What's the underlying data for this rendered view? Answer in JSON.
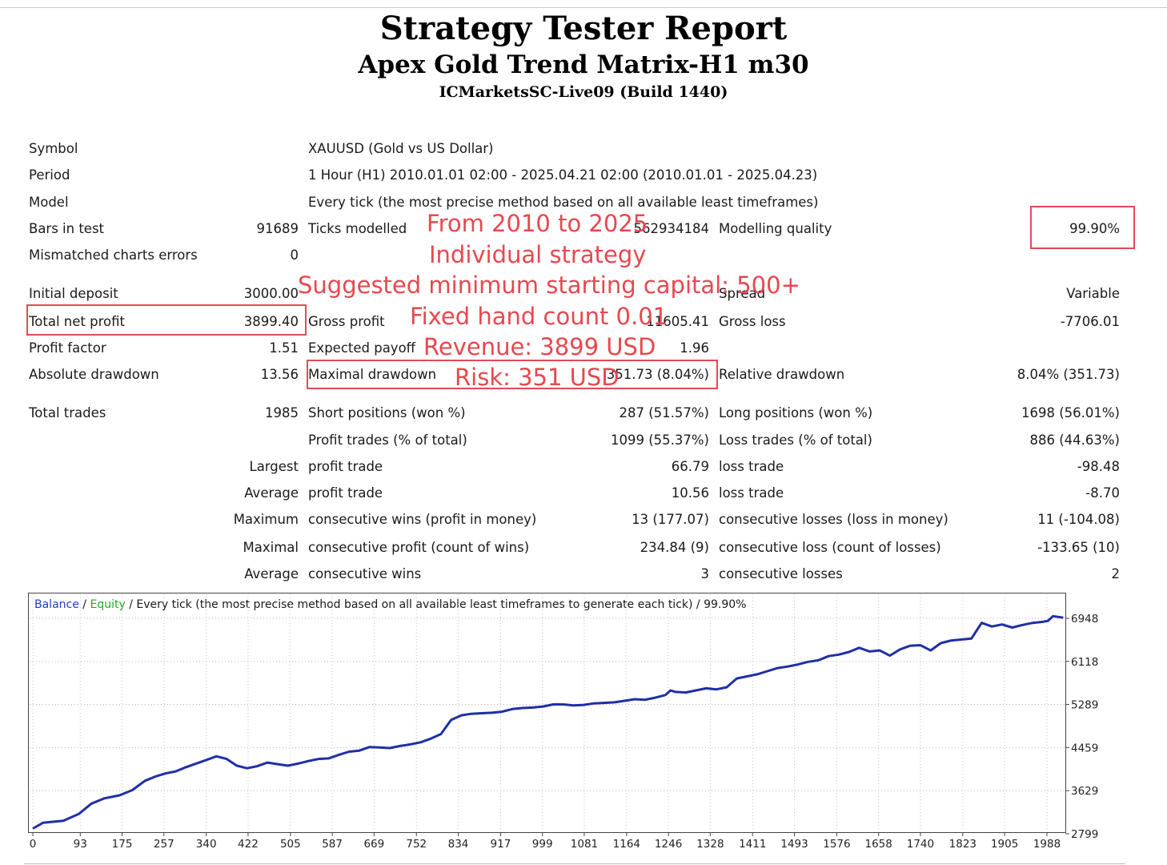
{
  "header": {
    "title": "Strategy Tester Report",
    "ea_name": "Apex Gold Trend Matrix-H1 m30",
    "server": "ICMarketsSC-Live09 (Build 1440)"
  },
  "report": {
    "symbol_label": "Symbol",
    "symbol_value": "XAUUSD (Gold vs US Dollar)",
    "period_label": "Period",
    "period_value": "1 Hour (H1) 2010.01.01 02:00 - 2025.04.21 02:00 (2010.01.01 - 2025.04.23)",
    "model_label": "Model",
    "model_value": "Every tick (the most precise method based on all available least timeframes)",
    "bars_label": "Bars in test",
    "bars_value": "91689",
    "ticks_label": "Ticks modelled",
    "ticks_value": "562934184",
    "quality_label": "Modelling quality",
    "quality_value": "99.90%",
    "mismatch_label": "Mismatched charts errors",
    "mismatch_value": "0",
    "deposit_label": "Initial deposit",
    "deposit_value": "3000.00",
    "spread_label": "Spread",
    "spread_value": "Variable",
    "net_profit_label": "Total net profit",
    "net_profit_value": "3899.40",
    "gross_profit_label": "Gross profit",
    "gross_profit_value": "11605.41",
    "gross_loss_label": "Gross loss",
    "gross_loss_value": "-7706.01",
    "pf_label": "Profit factor",
    "pf_value": "1.51",
    "payoff_label": "Expected payoff",
    "payoff_value": "1.96",
    "abs_dd_label": "Absolute drawdown",
    "abs_dd_value": "13.56",
    "max_dd_label": "Maximal drawdown",
    "max_dd_value": "351.73 (8.04%)",
    "rel_dd_label": "Relative drawdown",
    "rel_dd_value": "8.04% (351.73)",
    "total_trades_label": "Total trades",
    "total_trades_value": "1985",
    "short_label": "Short positions (won %)",
    "short_value": "287 (51.57%)",
    "long_label": "Long positions (won %)",
    "long_value": "1698 (56.01%)",
    "profit_trades_label": "Profit trades (% of total)",
    "profit_trades_value": "1099 (55.37%)",
    "loss_trades_label": "Loss trades (% of total)",
    "loss_trades_value": "886 (44.63%)",
    "largest_label": "Largest",
    "largest_profit_label": "profit trade",
    "largest_profit_value": "66.79",
    "largest_loss_label": "loss trade",
    "largest_loss_value": "-98.48",
    "average_label": "Average",
    "average_profit_label": "profit trade",
    "average_profit_value": "10.56",
    "average_loss_label": "loss trade",
    "average_loss_value": "-8.70",
    "maximum_label": "Maximum",
    "max_wins_label": "consecutive wins (profit in money)",
    "max_wins_value": "13 (177.07)",
    "max_losses_label": "consecutive losses (loss in money)",
    "max_losses_value": "11 (-104.08)",
    "maximal_label": "Maximal",
    "maximal_profit_label": "consecutive profit (count of wins)",
    "maximal_profit_value": "234.84 (9)",
    "maximal_loss_label": "consecutive loss (count of losses)",
    "maximal_loss_value": "-133.65 (10)",
    "average2_label": "Average",
    "avg_wins_label": "consecutive wins",
    "avg_wins_value": "3",
    "avg_losses_label": "consecutive losses",
    "avg_losses_value": "2"
  },
  "overlay": {
    "line1": "From 2010 to 2025",
    "line2": "Individual strategy",
    "line3": "Suggested minimum starting capital: 500+",
    "line4": "Fixed hand count 0.01",
    "line5": "Revenue: 3899 USD",
    "line6": "Risk: 351 USD"
  },
  "colors": {
    "balance_line": "#1f2fa6",
    "balance_legend": "#1f3fbf",
    "equity_legend": "#2aa52a",
    "highlight_box": "#e04b55",
    "overlay_text": "#e8474f"
  },
  "chart_data": {
    "type": "line",
    "legend": {
      "balance": "Balance",
      "sep1": " / ",
      "equity": "Equity",
      "rest": " / Every tick (the most precise method based on all available least timeframes to generate each tick) / 99.90%"
    },
    "x_ticks": [
      "0",
      "93",
      "175",
      "257",
      "340",
      "422",
      "505",
      "587",
      "669",
      "752",
      "834",
      "917",
      "999",
      "1081",
      "1164",
      "1246",
      "1328",
      "1411",
      "1493",
      "1576",
      "1658",
      "1740",
      "1823",
      "1905",
      "1988"
    ],
    "y_ticks": [
      "6948",
      "6118",
      "5289",
      "4459",
      "3629",
      "2799"
    ],
    "xlim": [
      0,
      2025
    ],
    "ylim": [
      2799,
      7240
    ],
    "series": [
      {
        "name": "Balance",
        "x": [
          0,
          20,
          60,
          90,
          115,
          140,
          170,
          195,
          220,
          240,
          260,
          280,
          300,
          320,
          340,
          360,
          380,
          400,
          420,
          440,
          460,
          480,
          500,
          520,
          540,
          560,
          580,
          600,
          620,
          640,
          660,
          680,
          700,
          720,
          740,
          760,
          780,
          800,
          820,
          840,
          860,
          880,
          900,
          920,
          940,
          960,
          980,
          1000,
          1020,
          1040,
          1060,
          1080,
          1100,
          1120,
          1140,
          1160,
          1180,
          1200,
          1220,
          1240,
          1250,
          1260,
          1280,
          1300,
          1320,
          1340,
          1360,
          1380,
          1400,
          1420,
          1440,
          1460,
          1480,
          1500,
          1520,
          1540,
          1560,
          1580,
          1600,
          1620,
          1640,
          1660,
          1680,
          1700,
          1720,
          1740,
          1760,
          1780,
          1800,
          1820,
          1840,
          1860,
          1880,
          1900,
          1920,
          1940,
          1960,
          1980,
          1990,
          2000,
          2020
        ],
        "y": [
          2900,
          3010,
          3050,
          3180,
          3380,
          3480,
          3540,
          3640,
          3820,
          3900,
          3960,
          4000,
          4080,
          4150,
          4220,
          4290,
          4240,
          4110,
          4060,
          4100,
          4170,
          4140,
          4110,
          4150,
          4200,
          4240,
          4250,
          4320,
          4380,
          4400,
          4470,
          4460,
          4450,
          4490,
          4520,
          4560,
          4630,
          4720,
          4990,
          5080,
          5110,
          5120,
          5130,
          5150,
          5200,
          5220,
          5230,
          5250,
          5290,
          5290,
          5270,
          5280,
          5310,
          5320,
          5330,
          5360,
          5390,
          5380,
          5420,
          5470,
          5560,
          5530,
          5520,
          5560,
          5600,
          5580,
          5620,
          5790,
          5830,
          5870,
          5930,
          5990,
          6020,
          6060,
          6110,
          6140,
          6220,
          6250,
          6300,
          6380,
          6310,
          6330,
          6230,
          6350,
          6420,
          6430,
          6330,
          6470,
          6520,
          6540,
          6560,
          6860,
          6790,
          6830,
          6770,
          6820,
          6860,
          6880,
          6900,
          6990,
          6960
        ]
      }
    ]
  }
}
